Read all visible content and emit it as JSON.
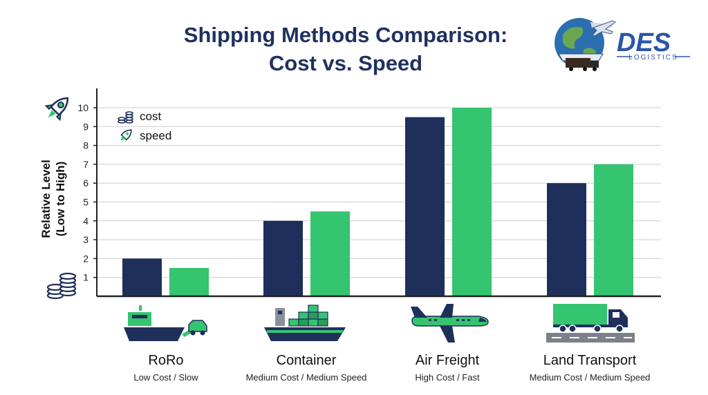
{
  "title": {
    "line1": "Shipping Methods Comparison:",
    "line2": "Cost vs. Speed"
  },
  "logo": {
    "name": "DES",
    "sub": "LOGISTICS"
  },
  "colors": {
    "cost": "#1f2f5c",
    "speed": "#35c46f",
    "axis": "#222222",
    "grid": "#cccccc"
  },
  "chart_data": {
    "type": "bar",
    "ylabel_line1": "Relative Level",
    "ylabel_line2": "(Low to High)",
    "ylim": [
      0,
      10
    ],
    "yticks": [
      1,
      2,
      3,
      4,
      5,
      6,
      7,
      8,
      9,
      10
    ],
    "grid": true,
    "legend_position": "top-left",
    "categories": [
      "RoRo",
      "Container",
      "Air Freight",
      "Land Transport"
    ],
    "category_notes": [
      "Low Cost / Slow",
      "Medium Cost / Medium Speed",
      "High Cost / Fast",
      "Medium Cost / Medium Speed"
    ],
    "series": [
      {
        "name": "cost",
        "values": [
          2,
          4,
          9.5,
          6
        ]
      },
      {
        "name": "speed",
        "values": [
          1.5,
          4.5,
          10,
          7
        ]
      }
    ]
  }
}
